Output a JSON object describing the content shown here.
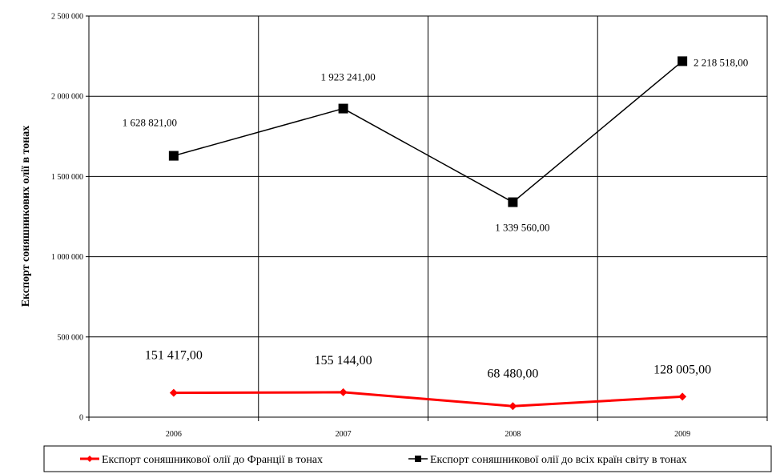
{
  "chart_data": {
    "type": "line",
    "categories": [
      "2006",
      "2007",
      "2008",
      "2009"
    ],
    "ylabel": "Експорт соняшникових олії в тонах",
    "ylim": [
      0,
      2500000
    ],
    "y_ticks": [
      0,
      500000,
      1000000,
      1500000,
      2000000,
      2500000
    ],
    "y_tick_labels": [
      "0",
      "500 000",
      "1 000 000",
      "1 500 000",
      "2 000 000",
      "2 500 000"
    ],
    "grid": true,
    "legend_position": "bottom",
    "series": [
      {
        "name": "Експорт соняшникової олії до Франції в тонах",
        "color": "#ff0000",
        "marker": "diamond",
        "values": [
          151417,
          155144,
          68480,
          128005
        ],
        "labels": [
          "151 417,00",
          "155 144,00",
          "68 480,00",
          "128 005,00"
        ]
      },
      {
        "name": "Експорт соняшникової олії до всіх країн світу в тонах",
        "color": "#000000",
        "marker": "square",
        "values": [
          1628821,
          1923241,
          1339560,
          2218518
        ],
        "labels": [
          "1 628 821,00",
          "1 923 241,00",
          "1 339 560,00",
          "2 218 518,00"
        ]
      }
    ]
  }
}
